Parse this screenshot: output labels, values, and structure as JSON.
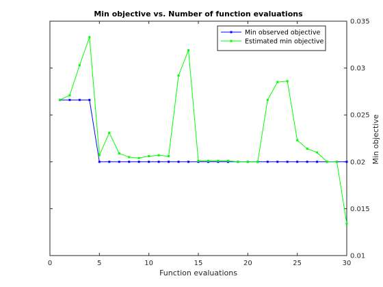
{
  "chart_data": {
    "type": "line",
    "title": "Min objective vs. Number of function evaluations",
    "xlabel": "Function evaluations",
    "ylabel": "Min objective",
    "xlim": [
      0,
      30
    ],
    "ylim": [
      0.01,
      0.035
    ],
    "y_axis_location": "right",
    "grid": false,
    "legend_position": "top-right",
    "xticks": [
      0,
      5,
      10,
      15,
      20,
      25,
      30
    ],
    "xtick_labels": [
      "0",
      "5",
      "10",
      "15",
      "20",
      "25",
      "30"
    ],
    "yticks": [
      0.01,
      0.015,
      0.02,
      0.025,
      0.03,
      0.035
    ],
    "ytick_labels": [
      "0.01",
      "0.015",
      "0.02",
      "0.025",
      "0.03",
      "0.035"
    ],
    "x": [
      1,
      2,
      3,
      4,
      5,
      6,
      7,
      8,
      9,
      10,
      11,
      12,
      13,
      14,
      15,
      16,
      17,
      18,
      19,
      20,
      21,
      22,
      23,
      24,
      25,
      26,
      27,
      28,
      29,
      30
    ],
    "series": [
      {
        "name": "Min observed objective",
        "color": "#0000ff",
        "values": [
          0.0266,
          0.0266,
          0.0266,
          0.0266,
          0.02,
          0.02,
          0.02,
          0.02,
          0.02,
          0.02,
          0.02,
          0.02,
          0.02,
          0.02,
          0.02,
          0.02,
          0.02,
          0.02,
          0.02,
          0.02,
          0.02,
          0.02,
          0.02,
          0.02,
          0.02,
          0.02,
          0.02,
          0.02,
          0.02,
          0.02
        ]
      },
      {
        "name": "Estimated min objective",
        "color": "#00ff00",
        "values": [
          0.0266,
          0.0271,
          0.0303,
          0.0333,
          0.0207,
          0.0231,
          0.0209,
          0.0205,
          0.0204,
          0.0206,
          0.0207,
          0.0206,
          0.0292,
          0.0319,
          0.0201,
          0.0201,
          0.0201,
          0.0201,
          0.02,
          0.02,
          0.02,
          0.0266,
          0.0285,
          0.0286,
          0.0223,
          0.0214,
          0.021,
          0.02,
          0.02,
          0.0134
        ]
      }
    ]
  }
}
